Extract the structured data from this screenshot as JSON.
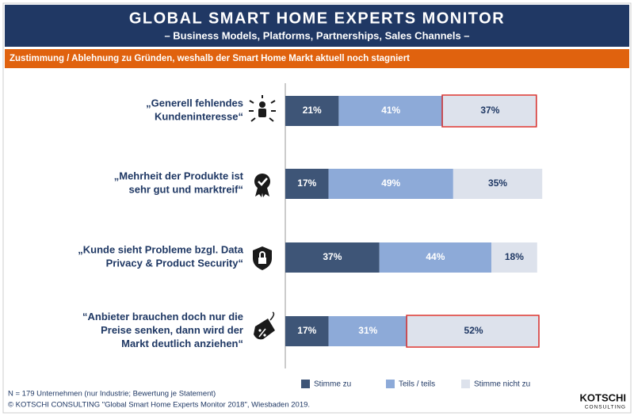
{
  "chart_data": {
    "type": "bar",
    "orientation": "horizontal",
    "stacked": true,
    "title": "GLOBAL SMART HOME EXPERTS MONITOR",
    "subtitle": "– Business Models, Platforms, Partnerships, Sales Channels –",
    "heading": "Zustimmung / Ablehnung zu Gründen, weshalb der Smart Home Markt aktuell noch stagniert",
    "categories": [
      "„Generell fehlendes\nKundeninteresse“",
      "„Mehrheit der Produkte ist\nsehr gut und marktreif“",
      "„Kunde sieht Probleme bzgl. Data\nPrivacy & Product Security“",
      "“Anbieter brauchen doch nur die\nPreise senken, dann wird der\nMarkt deutlich anziehen“"
    ],
    "series": [
      {
        "name": "Stimme zu",
        "color": "#3e5577",
        "label_color": "#ffffff",
        "values": [
          21,
          17,
          37,
          17
        ],
        "value_labels": [
          "21%",
          "17%",
          "37%",
          "17%"
        ]
      },
      {
        "name": "Teils / teils",
        "color": "#8daad8",
        "label_color": "#ffffff",
        "values": [
          41,
          49,
          44,
          31
        ],
        "value_labels": [
          "41%",
          "49%",
          "44%",
          "31%"
        ]
      },
      {
        "name": "Stimme nicht zu",
        "color": "#dde2ec",
        "label_color": "#1f3864",
        "values": [
          37,
          35,
          18,
          52
        ],
        "value_labels": [
          "37%",
          "35%",
          "18%",
          "52%"
        ],
        "highlight": [
          true,
          false,
          false,
          true
        ],
        "highlight_color": "#d9302c"
      }
    ],
    "xlim": [
      0,
      100
    ],
    "grid": false,
    "legend": "bottom",
    "notes": [
      "N = 179 Unternehmen (nur Industrie; Bewertung je Statement)",
      "© KOTSCHI CONSULTING \"Global Smart Home Experts Monitor 2018\", Wiesbaden 2019."
    ],
    "logo": [
      "KOTSCHI",
      "CONSULTING"
    ]
  }
}
